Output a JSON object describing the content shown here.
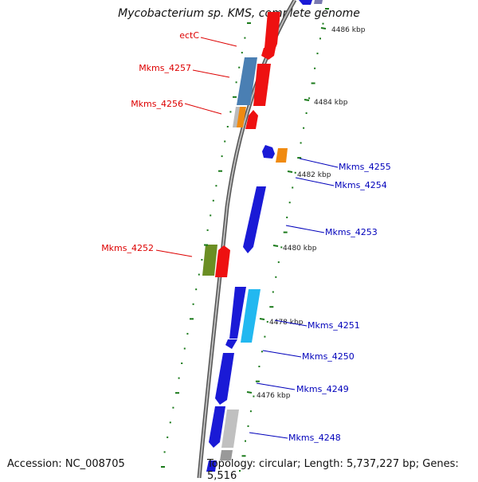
{
  "title": "Mycobacterium sp. KMS, complete genome",
  "accession": "Accession: NC_008705",
  "summary": "Topology: circular; Length: 5,737,227 bp; Genes: 5,516",
  "colors": {
    "forward_label": "#dd0000",
    "reverse_label": "#0000bb",
    "backbone": "#888888",
    "tick": "#1a7a1a"
  },
  "scale_labels": [
    "4486 kbp",
    "4484 kbp",
    "4482 kbp",
    "4480 kbp",
    "4478 kbp",
    "4476 kbp"
  ],
  "forward_gene_labels": [
    "ectC",
    "Mkms_4257",
    "Mkms_4256",
    "Mkms_4252"
  ],
  "reverse_gene_labels": [
    "Mkms_4255",
    "Mkms_4254",
    "Mkms_4253",
    "Mkms_4251",
    "Mkms_4250",
    "Mkms_4249",
    "Mkms_4248"
  ]
}
